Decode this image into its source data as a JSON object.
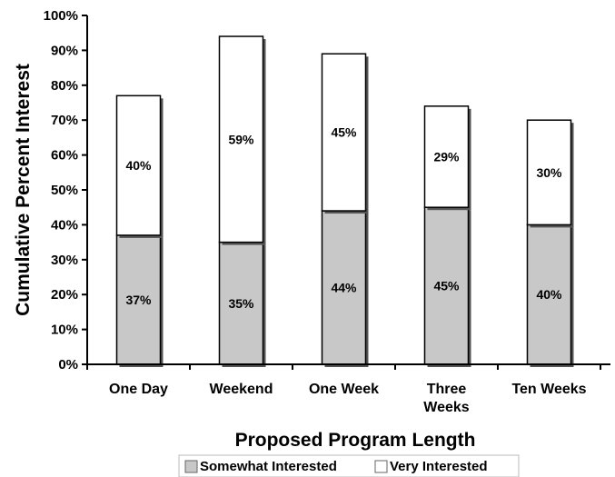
{
  "chart_data": {
    "type": "bar",
    "stacked": true,
    "categories": [
      "One Day",
      "Weekend",
      "One Week",
      "Three Weeks",
      "Ten Weeks"
    ],
    "category_labels": [
      [
        "One Day"
      ],
      [
        "Weekend"
      ],
      [
        "One Week"
      ],
      [
        "Three",
        "Weeks"
      ],
      [
        "Ten Weeks"
      ]
    ],
    "series": [
      {
        "name": "Somewhat Interested",
        "values": [
          37,
          35,
          44,
          45,
          40
        ],
        "labels": [
          "37%",
          "35%",
          "44%",
          "45%",
          "40%"
        ],
        "color": "#c8c8c8"
      },
      {
        "name": "Very Interested",
        "values": [
          40,
          59,
          45,
          29,
          30
        ],
        "labels": [
          "40%",
          "59%",
          "45%",
          "29%",
          "30%"
        ],
        "color": "#ffffff"
      }
    ],
    "xlabel": "Proposed Program Length",
    "ylabel": "Cumulative Percent Interest",
    "ylim": [
      0,
      100
    ],
    "yticks": [
      0,
      10,
      20,
      30,
      40,
      50,
      60,
      70,
      80,
      90,
      100
    ],
    "ytick_labels": [
      "0%",
      "10%",
      "20%",
      "30%",
      "40%",
      "50%",
      "60%",
      "70%",
      "80%",
      "90%",
      "100%"
    ],
    "grid": false,
    "legend_position": "bottom"
  }
}
